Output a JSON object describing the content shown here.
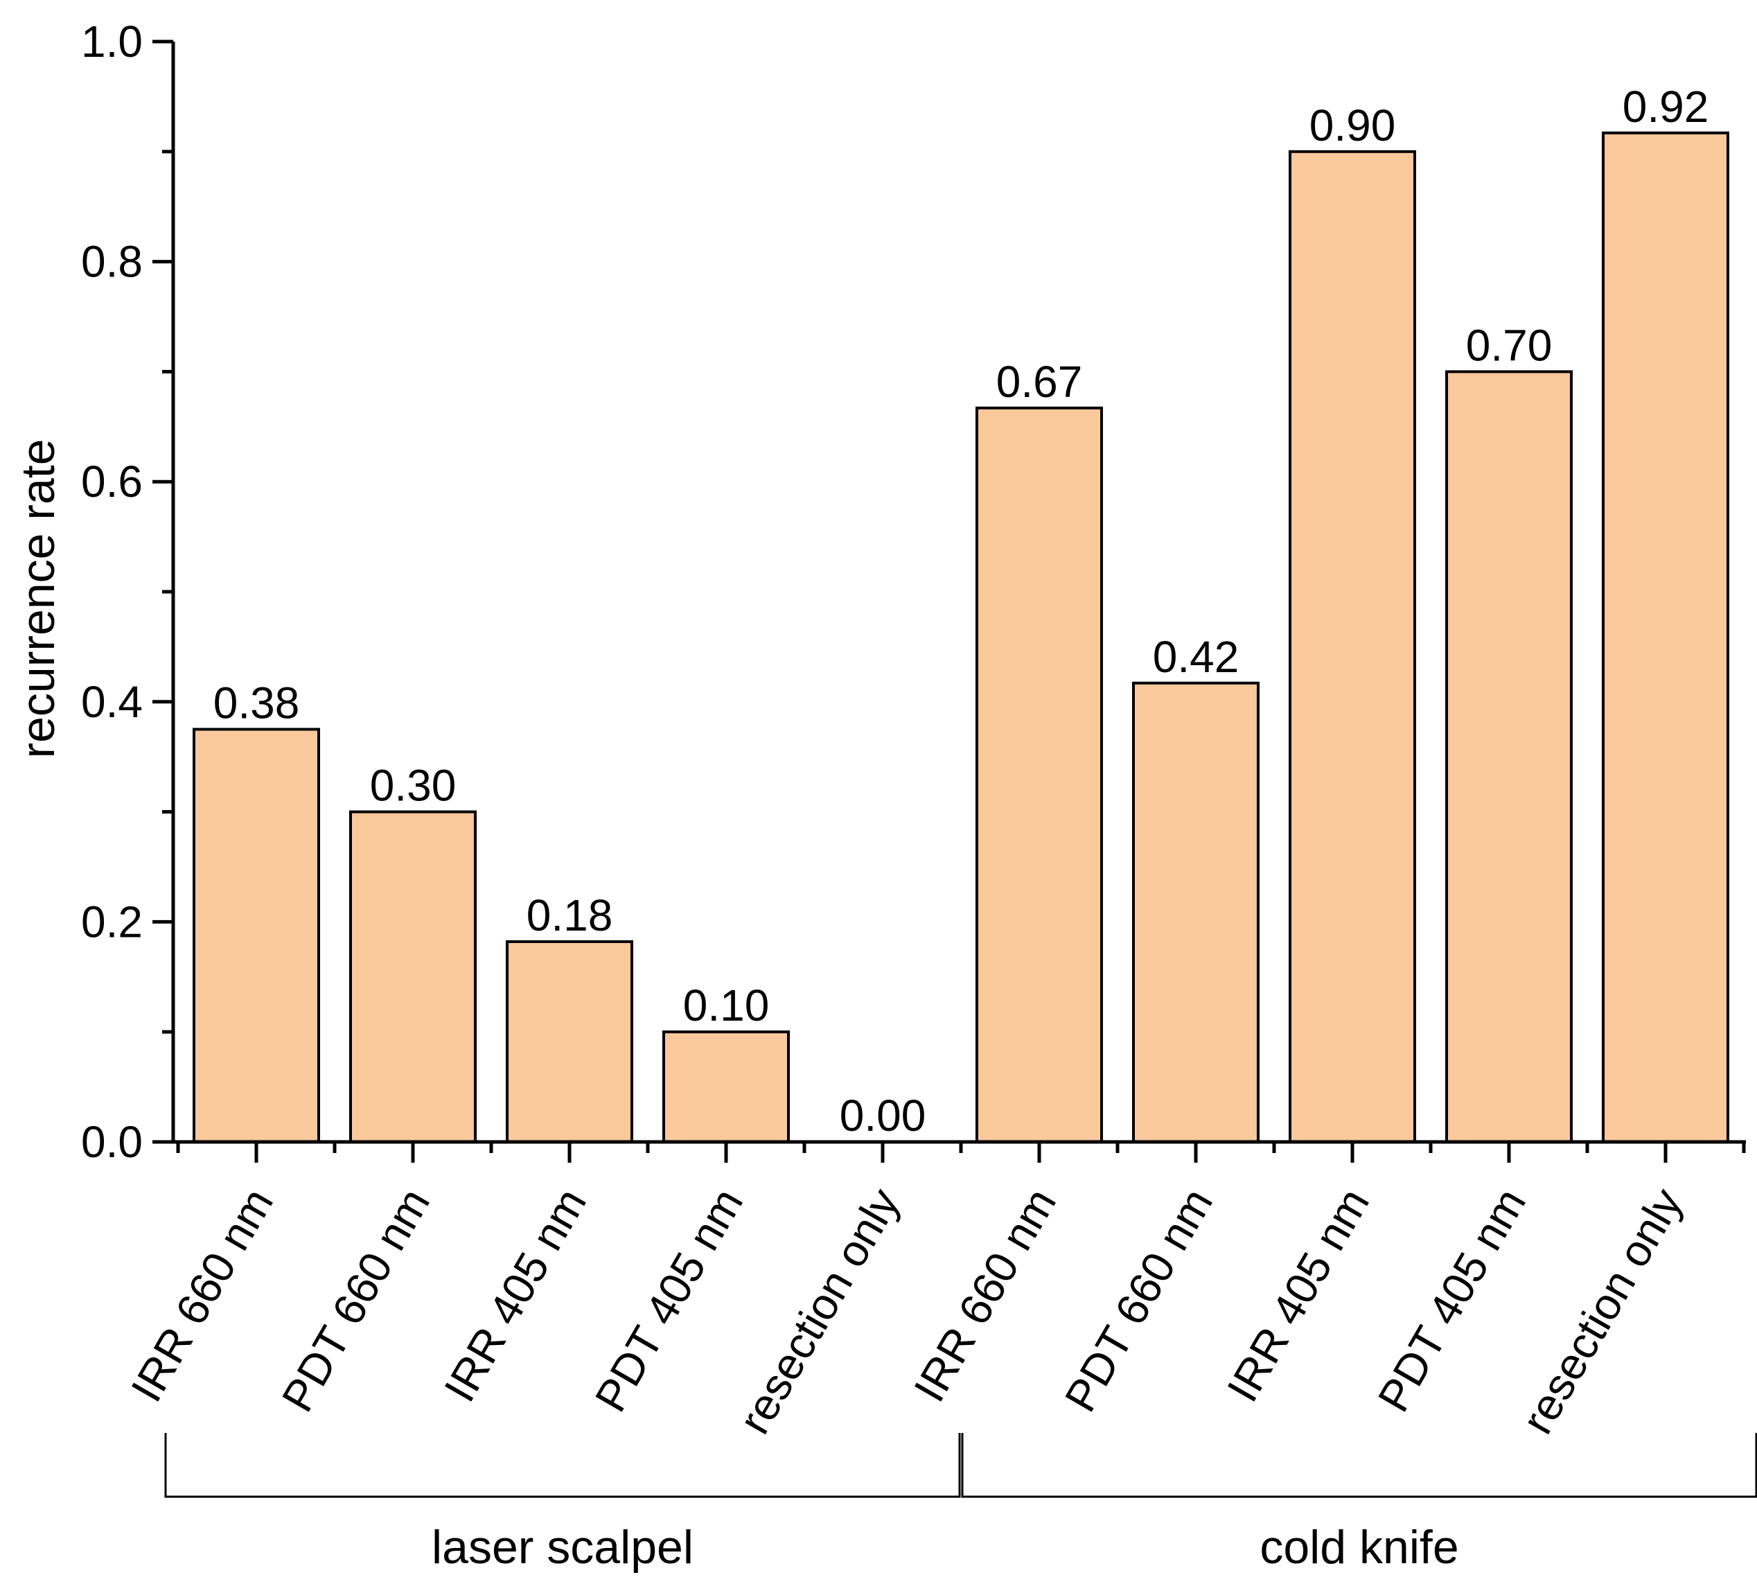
{
  "chart_data": {
    "type": "bar",
    "ylabel": "recurrence rate",
    "ylim": [
      0,
      1.0
    ],
    "yticks": [
      "0.0",
      "0.2",
      "0.4",
      "0.6",
      "0.8",
      "1.0"
    ],
    "grid": false,
    "legend": "none",
    "bar_color": "#F9C89B",
    "bar_edge_color": "#000000",
    "categories": [
      "IRR 660 nm",
      "PDT 660 nm",
      "IRR 405 nm",
      "PDT 405 nm",
      "resection only",
      "IRR 660 nm",
      "PDT 660 nm",
      "IRR 405 nm",
      "PDT 405 nm",
      "resection only"
    ],
    "values": [
      0.375,
      0.3,
      0.182,
      0.1,
      0.0,
      0.667,
      0.417,
      0.9,
      0.7,
      0.917
    ],
    "data_labels": [
      "0.38",
      "0.30",
      "0.18",
      "0.10",
      "0.00",
      "0.67",
      "0.42",
      "0.90",
      "0.70",
      "0.92"
    ],
    "groups": [
      {
        "label": "laser scalpel",
        "start": 0,
        "end": 4
      },
      {
        "label": "cold knife",
        "start": 5,
        "end": 9
      }
    ]
  }
}
